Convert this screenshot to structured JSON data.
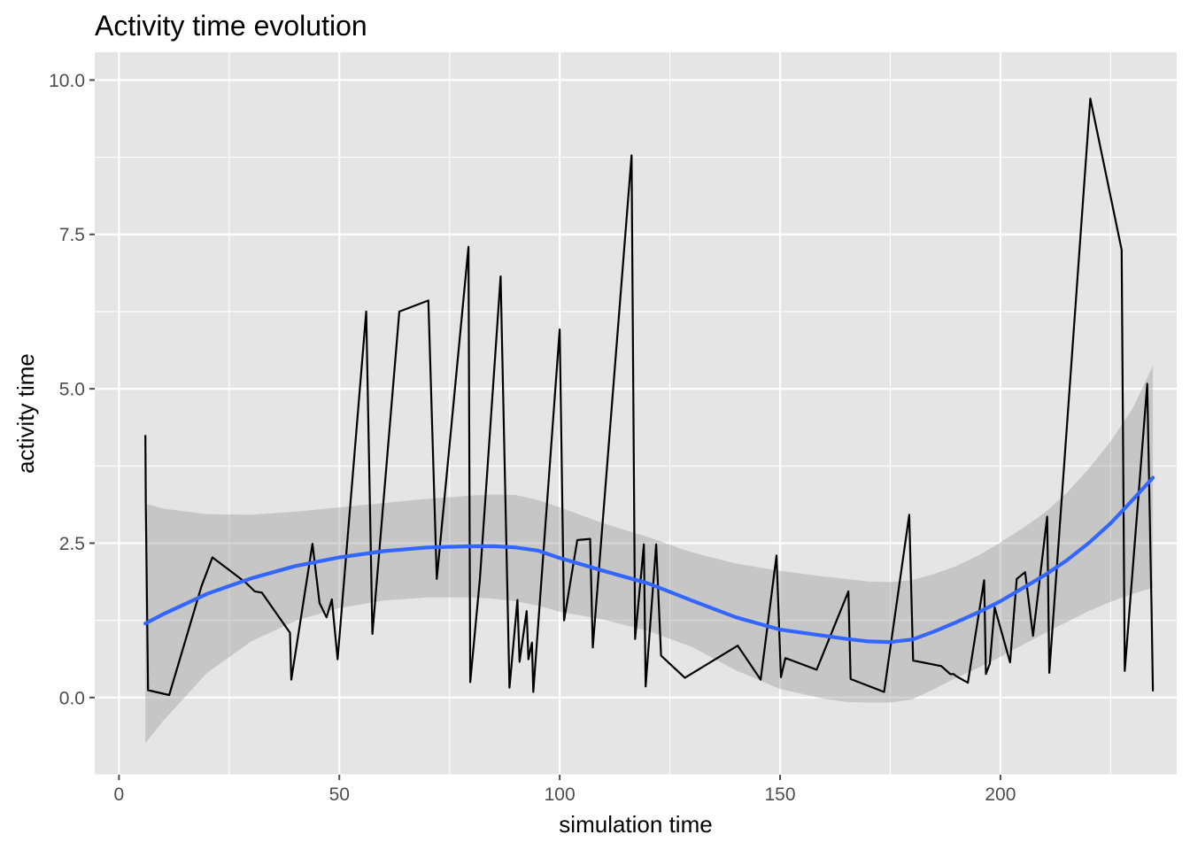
{
  "chart_data": {
    "type": "line",
    "title": "Activity time evolution",
    "xlabel": "simulation time",
    "ylabel": "activity time",
    "xlim": [
      -5.5,
      240
    ],
    "ylim": [
      -1.25,
      10.45
    ],
    "x_ticks": [
      0,
      50,
      100,
      150,
      200
    ],
    "x_tick_labels": [
      "0",
      "50",
      "100",
      "150",
      "200"
    ],
    "y_ticks": [
      0,
      2.5,
      5,
      7.5,
      10
    ],
    "y_tick_labels": [
      "0.0",
      "2.5",
      "5.0",
      "7.5",
      "10.0"
    ],
    "grid": true,
    "legend": "none",
    "colors": {
      "panel": "#e5e5e5",
      "grid": "#ffffff",
      "line": "#000000",
      "smooth": "#3366ff",
      "ribbon": "#999999",
      "ticks": "#4d4d4d"
    },
    "series": [
      {
        "values_x": [
          6,
          6.1,
          6.6,
          11.4,
          18.7,
          21.2,
          28.8,
          30.8,
          32.4,
          38.8,
          39.1,
          43.9,
          45.5,
          47.1,
          48.3,
          49.6,
          56.1,
          57.5,
          63.6,
          70.2,
          72.1,
          79.3,
          79.7,
          81.9,
          86.6,
          88.6,
          90.4,
          90.9,
          92.5,
          92.9,
          93.7,
          94,
          100,
          101,
          104,
          106.9,
          107.5,
          116.3,
          117.1,
          119.1,
          119.5,
          121.9,
          123,
          128.4,
          140.4,
          145.6,
          149.2,
          150.2,
          151.2,
          158.3,
          165.5,
          166,
          173.6,
          179.3,
          180.2,
          186.6,
          188.6,
          189.4,
          190.1,
          192.6,
          196.3,
          196.7,
          197.6,
          198.7,
          202.2,
          203.7,
          205.6,
          207.4,
          210.6,
          211.1,
          220.4,
          227.5,
          228.2,
          233.3,
          234.3,
          234.6
        ],
        "values_y": [
          4.25,
          3.1,
          0.12,
          0.04,
          1.8,
          2.27,
          1.86,
          1.72,
          1.7,
          1.05,
          0.29,
          2.49,
          1.53,
          1.3,
          1.59,
          0.62,
          6.25,
          1.03,
          6.25,
          6.43,
          1.92,
          7.3,
          0.25,
          1.92,
          6.82,
          0.16,
          1.58,
          0.58,
          1.4,
          0.62,
          0.89,
          0.09,
          5.96,
          1.25,
          2.55,
          2.57,
          0.81,
          8.78,
          0.95,
          2.48,
          0.18,
          2.48,
          0.68,
          0.32,
          0.84,
          0.29,
          2.3,
          0.33,
          0.64,
          0.45,
          1.72,
          0.3,
          0.09,
          2.96,
          0.6,
          0.51,
          0.38,
          0.38,
          0.34,
          0.24,
          1.9,
          0.38,
          0.55,
          1.46,
          0.57,
          1.92,
          2.03,
          1.0,
          2.93,
          0.4,
          9.7,
          7.25,
          0.43,
          5.08,
          1.42,
          0.1
        ]
      },
      {
        "values_x": [
          6,
          10,
          20,
          30,
          40,
          50,
          60,
          70,
          80,
          85,
          90,
          95,
          100,
          110,
          120,
          130,
          140,
          150,
          160,
          165,
          170,
          175,
          180,
          185,
          190,
          195,
          200,
          205,
          210,
          215,
          220,
          225,
          230,
          234.6
        ],
        "values_y": [
          1.2,
          1.35,
          1.68,
          1.93,
          2.13,
          2.27,
          2.37,
          2.43,
          2.45,
          2.45,
          2.43,
          2.38,
          2.26,
          2.05,
          1.85,
          1.57,
          1.3,
          1.1,
          1.0,
          0.95,
          0.91,
          0.9,
          0.94,
          1.07,
          1.22,
          1.38,
          1.56,
          1.77,
          1.98,
          2.22,
          2.5,
          2.82,
          3.2,
          3.56
        ]
      },
      {
        "values_x": [
          6,
          10,
          20,
          30,
          40,
          50,
          60,
          70,
          80,
          85,
          90,
          95,
          100,
          110,
          120,
          130,
          140,
          150,
          160,
          165,
          170,
          175,
          180,
          185,
          190,
          195,
          200,
          205,
          210,
          215,
          220,
          225,
          230,
          234.6
        ],
        "upper": [
          3.14,
          3.06,
          2.97,
          2.96,
          3.01,
          3.08,
          3.15,
          3.22,
          3.27,
          3.29,
          3.28,
          3.2,
          3.08,
          2.82,
          2.6,
          2.35,
          2.17,
          2.05,
          1.96,
          1.92,
          1.88,
          1.87,
          1.9,
          2.0,
          2.13,
          2.3,
          2.51,
          2.74,
          2.99,
          3.31,
          3.7,
          4.15,
          4.68,
          5.37
        ],
        "lower": [
          -0.74,
          -0.38,
          0.4,
          0.91,
          1.24,
          1.45,
          1.57,
          1.62,
          1.62,
          1.6,
          1.56,
          1.49,
          1.39,
          1.26,
          1.08,
          0.82,
          0.44,
          0.14,
          -0.02,
          -0.07,
          -0.08,
          -0.08,
          -0.03,
          0.14,
          0.32,
          0.48,
          0.66,
          0.85,
          1.04,
          1.22,
          1.4,
          1.55,
          1.68,
          1.78
        ]
      }
    ]
  }
}
